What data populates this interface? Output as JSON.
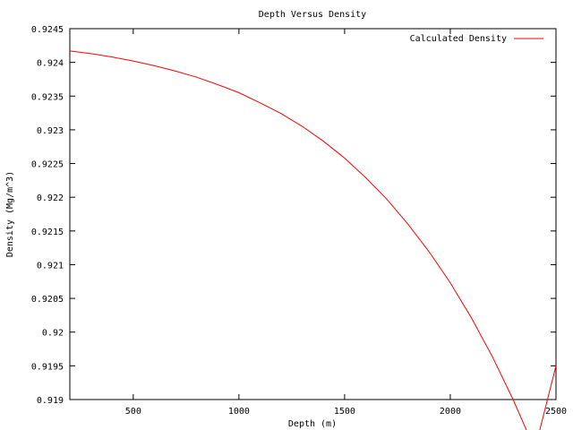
{
  "chart_data": {
    "type": "line",
    "title": "Depth Versus Density",
    "xlabel": "Depth (m)",
    "ylabel": "Density (Mg/m^3)",
    "xlim": [
      200,
      2500
    ],
    "ylim": [
      0.919,
      0.9245
    ],
    "xticks": [
      500,
      1000,
      1500,
      2000,
      2500
    ],
    "xtick_labels": [
      "500",
      "1000",
      "1500",
      "2000",
      "2500"
    ],
    "yticks": [
      0.919,
      0.9195,
      0.92,
      0.9205,
      0.921,
      0.9215,
      0.922,
      0.9225,
      0.923,
      0.9235,
      0.924,
      0.9245
    ],
    "ytick_labels": [
      "0.919",
      "0.9195",
      "0.92",
      "0.9205",
      "0.921",
      "0.9215",
      "0.922",
      "0.9225",
      "0.923",
      "0.9235",
      "0.924",
      "0.9245"
    ],
    "grid": false,
    "legend_position": "top-right",
    "series": [
      {
        "name": "Calculated Density",
        "color": "#ff0000",
        "x": [
          200,
          300,
          400,
          500,
          600,
          700,
          800,
          900,
          1000,
          1100,
          1200,
          1300,
          1400,
          1500,
          1600,
          1700,
          1800,
          1900,
          2000,
          2100,
          2200,
          2300,
          2400,
          2500
        ],
        "y": [
          0.92417,
          0.92413,
          0.92408,
          0.92402,
          0.92395,
          0.92387,
          0.92378,
          0.92367,
          0.92355,
          0.9234,
          0.92324,
          0.92305,
          0.92283,
          0.92258,
          0.92229,
          0.92197,
          0.9216,
          0.92119,
          0.92073,
          0.92021,
          0.91963,
          0.91898,
          0.91826,
          0.9195
        ]
      }
    ]
  }
}
